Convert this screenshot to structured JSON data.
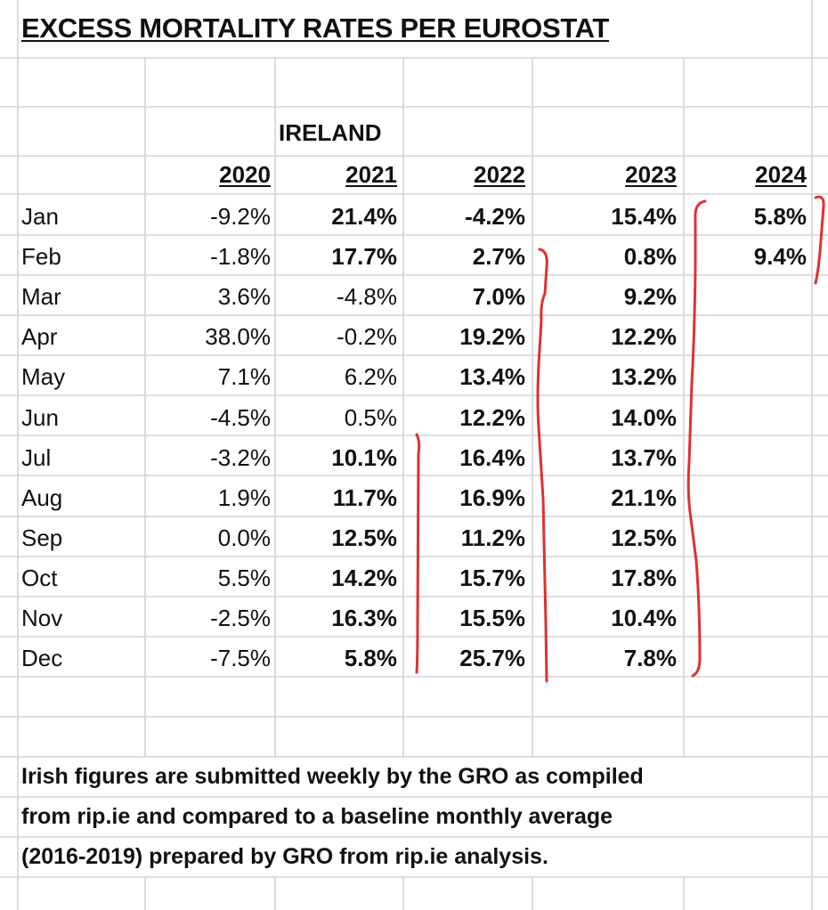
{
  "title": "EXCESS MORTALITY RATES PER EUROSTAT",
  "region": "IRELAND",
  "years": [
    "2020",
    "2021",
    "2022",
    "2023",
    "2024"
  ],
  "rows": [
    {
      "month": "Jan",
      "values": [
        "-9.2%",
        "21.4%",
        "-4.2%",
        "15.4%",
        "5.8%"
      ]
    },
    {
      "month": "Feb",
      "values": [
        "-1.8%",
        "17.7%",
        "2.7%",
        "0.8%",
        "9.4%"
      ]
    },
    {
      "month": "Mar",
      "values": [
        "3.6%",
        "-4.8%",
        "7.0%",
        "9.2%",
        ""
      ]
    },
    {
      "month": "Apr",
      "values": [
        "38.0%",
        "-0.2%",
        "19.2%",
        "12.2%",
        ""
      ]
    },
    {
      "month": "May",
      "values": [
        "7.1%",
        "6.2%",
        "13.4%",
        "13.2%",
        ""
      ]
    },
    {
      "month": "Jun",
      "values": [
        "-4.5%",
        "0.5%",
        "12.2%",
        "14.0%",
        ""
      ]
    },
    {
      "month": "Jul",
      "values": [
        "-3.2%",
        "10.1%",
        "16.4%",
        "13.7%",
        ""
      ]
    },
    {
      "month": "Aug",
      "values": [
        "1.9%",
        "11.7%",
        "16.9%",
        "21.1%",
        ""
      ]
    },
    {
      "month": "Sep",
      "values": [
        "0.0%",
        "12.5%",
        "11.2%",
        "12.5%",
        ""
      ]
    },
    {
      "month": "Oct",
      "values": [
        "5.5%",
        "14.2%",
        "15.7%",
        "17.8%",
        ""
      ]
    },
    {
      "month": "Nov",
      "values": [
        "-2.5%",
        "16.3%",
        "15.5%",
        "10.4%",
        ""
      ]
    },
    {
      "month": "Dec",
      "values": [
        "-7.5%",
        "5.8%",
        "25.7%",
        "7.8%",
        ""
      ]
    }
  ],
  "bold": [
    [
      false,
      true,
      true,
      true,
      true
    ],
    [
      false,
      true,
      true,
      true,
      true
    ],
    [
      false,
      false,
      true,
      true,
      false
    ],
    [
      false,
      false,
      true,
      true,
      false
    ],
    [
      false,
      false,
      true,
      true,
      false
    ],
    [
      false,
      false,
      true,
      true,
      false
    ],
    [
      false,
      true,
      true,
      true,
      false
    ],
    [
      false,
      true,
      true,
      true,
      false
    ],
    [
      false,
      true,
      true,
      true,
      false
    ],
    [
      false,
      true,
      true,
      true,
      false
    ],
    [
      false,
      true,
      true,
      true,
      false
    ],
    [
      false,
      true,
      true,
      true,
      false
    ]
  ],
  "note_lines": [
    "Irish figures are submitted weekly by the GRO as compiled",
    "from rip.ie and compared to a baseline monthly average",
    "(2016-2019) prepared by GRO from rip.ie analysis."
  ],
  "colors": {
    "annotation": "#e03030",
    "grid": "#d4d4d4"
  }
}
